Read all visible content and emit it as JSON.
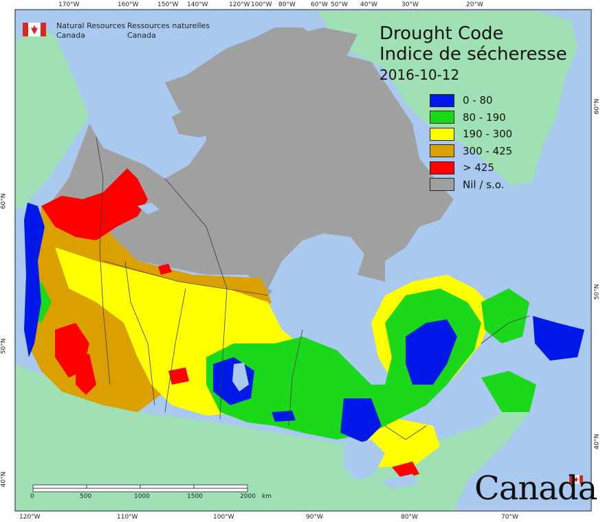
{
  "map": {
    "title_en": "Drought Code",
    "title_fr": "Indice de sécheresse",
    "date": "2016-10-12",
    "org_en_1": "Natural Resources",
    "org_en_2": "Canada",
    "org_fr_1": "Ressources naturelles",
    "org_fr_2": "Canada",
    "wordmark": "Canada",
    "legend": [
      {
        "label": "0 - 80",
        "color": "#0018e8"
      },
      {
        "label": "80 - 190",
        "color": "#1bd81b"
      },
      {
        "label": "190 - 300",
        "color": "#ffff00"
      },
      {
        "label": "300 - 425",
        "color": "#daa000"
      },
      {
        "label": "> 425",
        "color": "#ff0000"
      },
      {
        "label": "Nil / s.o.",
        "color": "#a0a0a0"
      }
    ],
    "colors": {
      "ocean": "#a9c9ee",
      "foreign_land": "#9fe0b5",
      "nil": "#a0a0a0",
      "border": "#3a3a3a"
    },
    "top_ticks": [
      "170°W",
      "160°W",
      "150°W",
      "140°W",
      "120°W",
      "100°W",
      "80°W",
      "60°W",
      "50°W",
      "40°W",
      "30°W",
      "20°W"
    ],
    "bottom_ticks": [
      "120°W",
      "110°W",
      "100°W",
      "90°W",
      "80°W",
      "70°W"
    ],
    "left_ticks": [
      "60°N",
      "50°N",
      "40°N"
    ],
    "right_ticks": [
      "60°N",
      "50°N",
      "40°N"
    ],
    "scale_labels": [
      "0",
      "500",
      "1000",
      "1500",
      "2000",
      "km"
    ]
  }
}
